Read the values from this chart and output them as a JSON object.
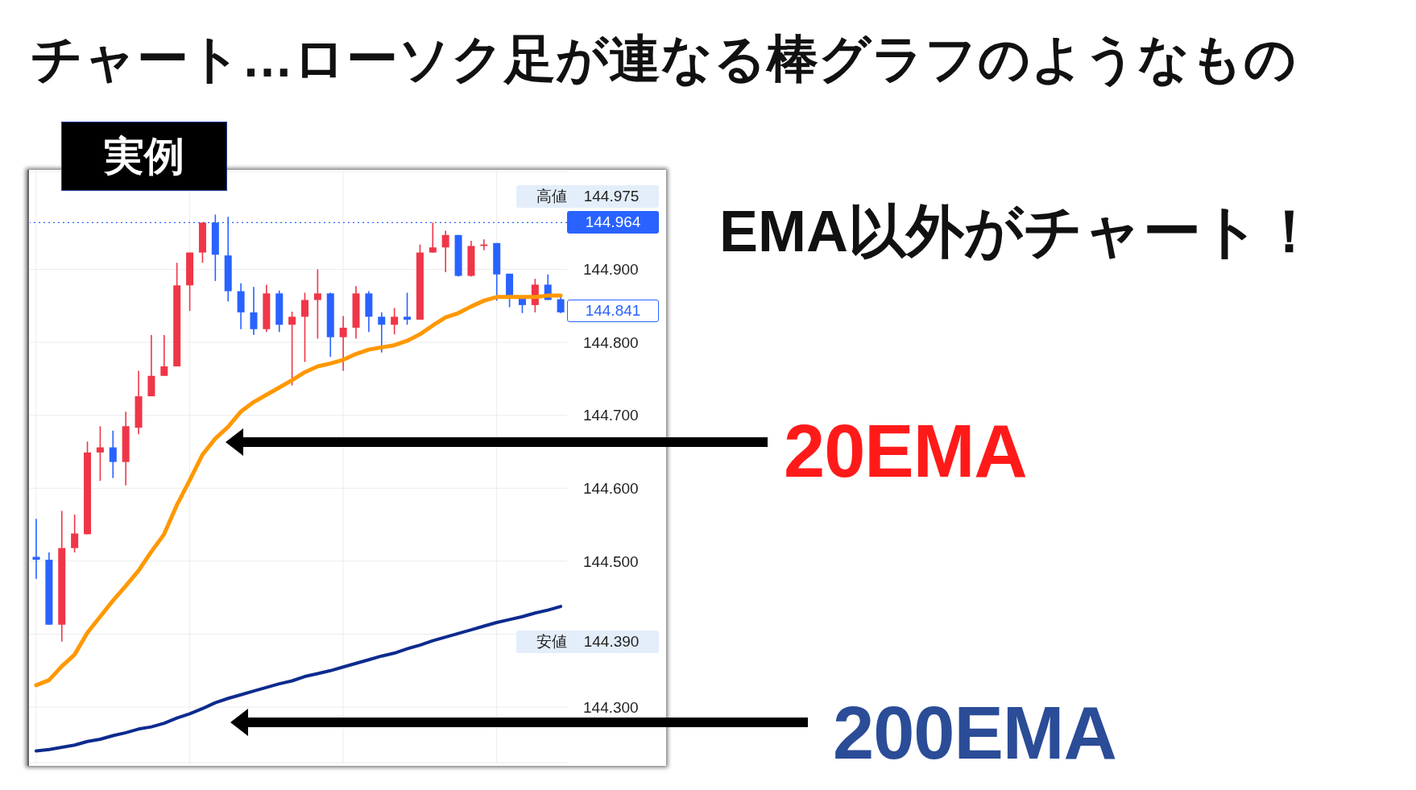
{
  "chart_data": {
    "type": "candlestick",
    "title": "チャート…ローソク足が連なる棒グラフのようなもの",
    "annotations": [
      "実例",
      "EMA以外がチャート！",
      "高値 144.975",
      "144.841",
      "安値 144.390"
    ],
    "categories": [
      null,
      null,
      null,
      null,
      null,
      null,
      null,
      null,
      null,
      null,
      null,
      null,
      null,
      null,
      null,
      null,
      null,
      null,
      null,
      null,
      null,
      null,
      null,
      null,
      null,
      null,
      null,
      null,
      null,
      null,
      null,
      null,
      null,
      null,
      null,
      null,
      null,
      null,
      null,
      null,
      null,
      null
    ],
    "series": [
      {
        "type": "candlestick",
        "ohlc": [
          [
            144.506,
            144.558,
            144.476,
            144.502
          ],
          [
            144.502,
            144.512,
            144.413,
            144.413
          ],
          [
            144.413,
            144.569,
            144.39,
            144.518
          ],
          [
            144.518,
            144.564,
            144.512,
            144.538
          ],
          [
            144.537,
            144.664,
            144.537,
            144.649
          ],
          [
            144.649,
            144.685,
            144.61,
            144.656
          ],
          [
            144.656,
            144.679,
            144.614,
            144.636
          ],
          [
            144.636,
            144.705,
            144.604,
            144.685
          ],
          [
            144.683,
            144.761,
            144.674,
            144.726
          ],
          [
            144.726,
            144.81,
            144.726,
            144.754
          ],
          [
            144.754,
            144.81,
            144.754,
            144.767
          ],
          [
            144.767,
            144.909,
            144.767,
            144.878
          ],
          [
            144.878,
            144.923,
            144.843,
            144.923
          ],
          [
            144.923,
            144.964,
            144.909,
            144.964
          ],
          [
            144.964,
            144.975,
            144.884,
            144.92
          ],
          [
            144.919,
            144.972,
            144.856,
            144.87
          ],
          [
            144.87,
            144.881,
            144.818,
            144.841
          ],
          [
            144.841,
            144.876,
            144.81,
            144.818
          ],
          [
            144.818,
            144.879,
            144.814,
            144.867
          ],
          [
            144.867,
            144.871,
            144.814,
            144.824
          ],
          [
            144.824,
            144.842,
            144.741,
            144.835
          ],
          [
            144.835,
            144.868,
            144.773,
            144.858
          ],
          [
            144.858,
            144.9,
            144.805,
            144.867
          ],
          [
            144.867,
            144.868,
            144.78,
            144.807
          ],
          [
            144.807,
            144.836,
            144.761,
            144.82
          ],
          [
            144.82,
            144.877,
            144.805,
            144.867
          ],
          [
            144.867,
            144.87,
            144.814,
            144.835
          ],
          [
            144.835,
            144.841,
            144.786,
            144.824
          ],
          [
            144.824,
            144.847,
            144.811,
            144.835
          ],
          [
            144.835,
            144.868,
            144.824,
            144.831
          ],
          [
            144.831,
            144.934,
            144.831,
            144.923
          ],
          [
            144.923,
            144.964,
            144.923,
            144.93
          ],
          [
            144.93,
            144.953,
            144.896,
            144.947
          ],
          [
            144.947,
            144.947,
            144.89,
            144.891
          ],
          [
            144.891,
            144.939,
            144.89,
            144.932
          ],
          [
            144.932,
            144.941,
            144.926,
            144.934
          ],
          [
            144.936,
            144.936,
            144.857,
            144.893
          ],
          [
            144.894,
            144.894,
            144.848,
            144.86
          ],
          [
            144.86,
            144.861,
            144.84,
            144.851
          ],
          [
            144.851,
            144.887,
            144.841,
            144.879
          ],
          [
            144.879,
            144.893,
            144.858,
            144.858
          ],
          [
            144.859,
            144.862,
            144.84,
            144.841
          ]
        ],
        "colors": [
          "#2962ff",
          "#2962ff",
          "#ef3648",
          "#ef3648",
          "#ef3648",
          "#ef3648",
          "#2962ff",
          "#ef3648",
          "#ef3648",
          "#ef3648",
          "#ef3648",
          "#ef3648",
          "#ef3648",
          "#ef3648",
          "#2962ff",
          "#2962ff",
          "#2962ff",
          "#2962ff",
          "#ef3648",
          "#2962ff",
          "#ef3648",
          "#ef3648",
          "#ef3648",
          "#2962ff",
          "#ef3648",
          "#ef3648",
          "#2962ff",
          "#2962ff",
          "#ef3648",
          "#2962ff",
          "#ef3648",
          "#ef3648",
          "#ef3648",
          "#2962ff",
          "#ef3648",
          "#ef3648",
          "#2962ff",
          "#2962ff",
          "#2962ff",
          "#ef3648",
          "#2962ff",
          "#2962ff"
        ]
      },
      {
        "type": "line",
        "name": "20EMA",
        "color": "#ff9800",
        "values": [
          144.33,
          144.337,
          144.356,
          144.372,
          144.402,
          144.424,
          144.446,
          144.466,
          144.487,
          144.513,
          144.537,
          144.577,
          144.611,
          144.646,
          144.668,
          144.684,
          144.705,
          144.718,
          144.728,
          144.738,
          144.748,
          144.759,
          144.767,
          144.771,
          144.776,
          144.784,
          144.79,
          144.793,
          144.796,
          144.802,
          144.811,
          144.823,
          144.834,
          144.84,
          144.849,
          144.857,
          144.862,
          144.862,
          144.862,
          144.862,
          144.864,
          144.864
        ]
      },
      {
        "type": "line",
        "name": "200EMA",
        "color": "#0d2b8e",
        "values": [
          144.24,
          144.242,
          144.245,
          144.248,
          144.253,
          144.256,
          144.261,
          144.265,
          144.27,
          144.273,
          144.278,
          144.285,
          144.291,
          144.298,
          144.306,
          144.312,
          144.317,
          144.322,
          144.327,
          144.332,
          144.336,
          144.342,
          144.346,
          144.35,
          144.355,
          144.36,
          144.365,
          144.37,
          144.374,
          144.38,
          144.385,
          144.391,
          144.396,
          144.401,
          144.406,
          144.411,
          144.416,
          144.42,
          144.424,
          144.429,
          144.433,
          144.438
        ]
      }
    ],
    "ylim": [
      144.224,
      145.034
    ],
    "yticks": [
      {
        "value": 144.3,
        "label": "144.300"
      },
      {
        "value": 144.4,
        "label": null
      },
      {
        "value": 144.5,
        "label": "144.500"
      },
      {
        "value": 144.6,
        "label": "144.600"
      },
      {
        "value": 144.7,
        "label": "144.700"
      },
      {
        "value": 144.8,
        "label": "144.800"
      },
      {
        "value": 144.9,
        "label": "144.900"
      }
    ],
    "ref_lines": [
      {
        "axis": "y",
        "value": 144.964,
        "label": "144.964",
        "color": "#2962ff",
        "line_style": "dotted"
      }
    ],
    "grid": true,
    "tick_labels": "y"
  }
}
